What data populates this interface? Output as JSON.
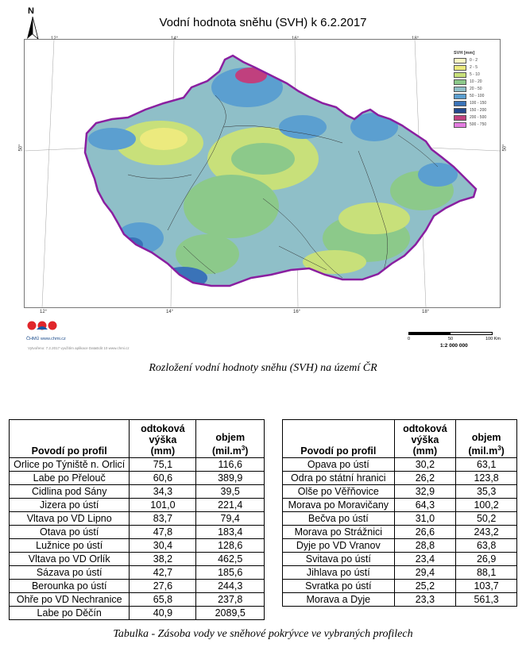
{
  "map": {
    "title": "Vodní hodnota sněhu (SVH) k 6.2.2017",
    "north_label": "N",
    "lon_labels": [
      "12°",
      "14°",
      "16°",
      "18°"
    ],
    "lat_label": "50°",
    "legend_title": "SVH [mm]",
    "legend": [
      {
        "label": "0 - 2",
        "color": "#fbf8c4"
      },
      {
        "label": "2 - 5",
        "color": "#ecea7e"
      },
      {
        "label": "5 - 10",
        "color": "#c8e07a"
      },
      {
        "label": "10 - 20",
        "color": "#8cc98a"
      },
      {
        "label": "20 - 50",
        "color": "#8fbfc8"
      },
      {
        "label": "50 - 100",
        "color": "#5b9fd0"
      },
      {
        "label": "100 - 150",
        "color": "#3a73b8"
      },
      {
        "label": "150 - 200",
        "color": "#24498c"
      },
      {
        "label": "200 - 500",
        "color": "#c0407e"
      },
      {
        "label": "500 - 750",
        "color": "#e37ce0"
      }
    ],
    "logo_text": "ČHMÚ www.chmi.cz",
    "footer_note": "Vytvořeno: 7.2.2017 využitím aplikace DataEdit 10 www.chmi.cz",
    "scale_ticks": [
      "0",
      "50",
      "100 Km"
    ],
    "scale_ratio": "1:2 000 000",
    "border_color": "#8a1fa0"
  },
  "captions": {
    "map": "Rozložení vodní hodnoty sněhu (SVH) na území ČR",
    "table": "Tabulka - Zásoba vody ve sněhové pokrývce ve vybraných profilech"
  },
  "table_headers": {
    "profile": "Povodí po profil",
    "runoff_l1": "odtoková",
    "runoff_l2": "výška",
    "runoff_l3": "(mm)",
    "volume_l1": "objem",
    "volume_l2": "(mil.m",
    "volume_sup": "3",
    "volume_end": ")"
  },
  "table_left": [
    [
      "Orlice po Týniště n. Orlicí",
      "75,1",
      "116,6"
    ],
    [
      "Labe po Přelouč",
      "60,6",
      "389,9"
    ],
    [
      "Cidlina pod Sány",
      "34,3",
      "39,5"
    ],
    [
      "Jizera po ústí",
      "101,0",
      "221,4"
    ],
    [
      "Vltava po VD Lipno",
      "83,7",
      "79,4"
    ],
    [
      "Otava po ústí",
      "47,8",
      "183,4"
    ],
    [
      "Lužnice po ústí",
      "30,4",
      "128,6"
    ],
    [
      "Vltava po VD Orlík",
      "38,2",
      "462,5"
    ],
    [
      "Sázava po ústí",
      "42,7",
      "185,6"
    ],
    [
      "Berounka po ústí",
      "27,6",
      "244,3"
    ],
    [
      "Ohře po VD Nechranice",
      "65,8",
      "237,8"
    ],
    [
      "Labe po Děčín",
      "40,9",
      "2089,5"
    ]
  ],
  "table_right": [
    [
      "Opava po ústí",
      "30,2",
      "63,1"
    ],
    [
      "Odra po státní hranici",
      "26,2",
      "123,8"
    ],
    [
      "Olše po Věřňovice",
      "32,9",
      "35,3"
    ],
    [
      "Morava po Moravičany",
      "64,3",
      "100,2"
    ],
    [
      "Bečva po ústí",
      "31,0",
      "50,2"
    ],
    [
      "Morava po Strážnici",
      "26,6",
      "243,2"
    ],
    [
      "Dyje po VD Vranov",
      "28,8",
      "63,8"
    ],
    [
      "Svitava po ústí",
      "23,4",
      "26,9"
    ],
    [
      "Jihlava po ústí",
      "29,4",
      "88,1"
    ],
    [
      "Svratka po ústí",
      "25,2",
      "103,7"
    ],
    [
      "Morava a Dyje",
      "23,3",
      "561,3"
    ]
  ]
}
